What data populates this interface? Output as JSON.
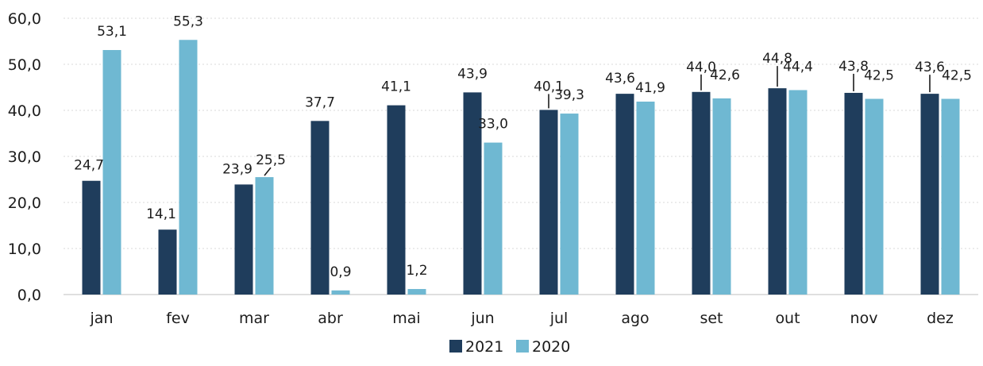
{
  "chart_data": {
    "type": "bar",
    "categories": [
      "jan",
      "fev",
      "mar",
      "abr",
      "mai",
      "jun",
      "jul",
      "ago",
      "set",
      "out",
      "nov",
      "dez"
    ],
    "series": [
      {
        "name": "2021",
        "color": "#1f3d5c",
        "values": [
          24.7,
          14.1,
          23.9,
          37.7,
          41.1,
          43.9,
          40.1,
          43.6,
          44.0,
          44.8,
          43.8,
          43.6
        ],
        "labels": [
          "24,7",
          "14,1",
          "23,9",
          "37,7",
          "41,1",
          "43,9",
          "40,1",
          "43,6",
          "44,0",
          "44,8",
          "43,8",
          "43,6"
        ]
      },
      {
        "name": "2020",
        "color": "#6fb8d2",
        "values": [
          53.1,
          55.3,
          25.5,
          0.9,
          1.2,
          33.0,
          39.3,
          41.9,
          42.6,
          44.4,
          42.5,
          42.5
        ],
        "labels": [
          "53,1",
          "55,3",
          "25,5",
          "0,9",
          "1,2",
          "33,0",
          "39,3",
          "41,9",
          "42,6",
          "44,4",
          "42,5",
          "42,5"
        ]
      }
    ],
    "y_ticks": [
      0,
      10,
      20,
      30,
      40,
      50,
      60
    ],
    "y_tick_labels": [
      "0,0",
      "10,0",
      "20,0",
      "30,0",
      "40,0",
      "50,0",
      "60,0"
    ],
    "ylim": [
      0,
      60
    ],
    "grid": true,
    "legend": "bottom-center"
  }
}
